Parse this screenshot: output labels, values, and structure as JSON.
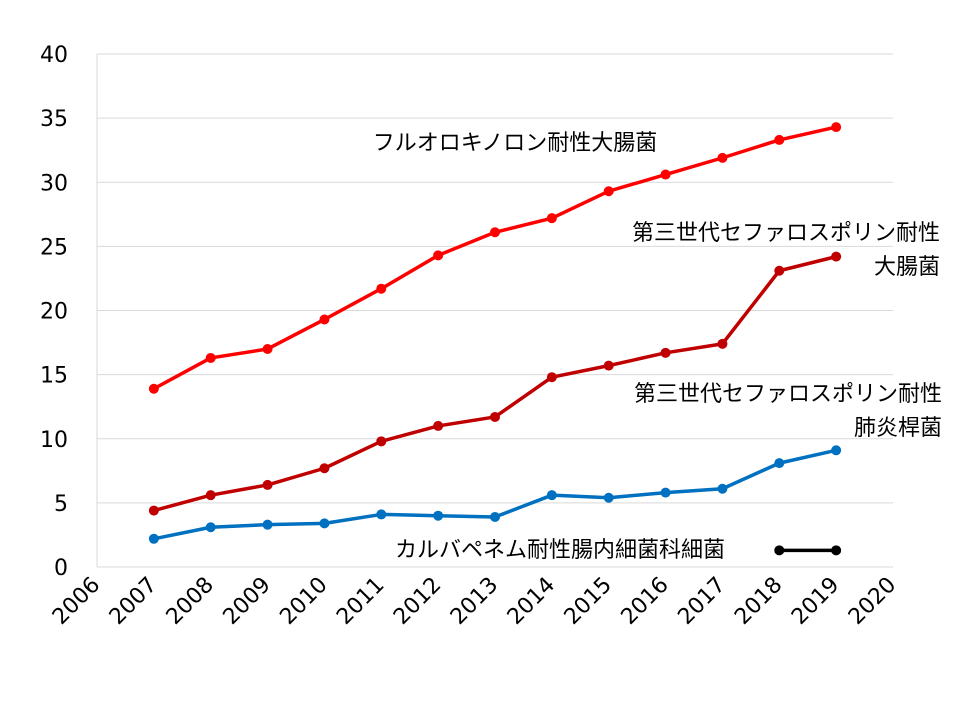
{
  "chart_data": {
    "type": "line",
    "xlim": [
      2006,
      2020
    ],
    "ylim": [
      0,
      40
    ],
    "x_ticks": [
      "2006",
      "2007",
      "2008",
      "2009",
      "2010",
      "2011",
      "2012",
      "2013",
      "2014",
      "2015",
      "2016",
      "2017",
      "2018",
      "2019",
      "2020"
    ],
    "y_ticks": [
      "0",
      "5",
      "10",
      "15",
      "20",
      "25",
      "30",
      "35",
      "40"
    ],
    "grid": "horizontal",
    "series": [
      {
        "name": "フルオロキノロン耐性大腸菌",
        "label_lines": [
          "フルオロキノロン耐性大腸菌"
        ],
        "color": "#ff0000",
        "x": [
          2007,
          2008,
          2009,
          2010,
          2011,
          2012,
          2013,
          2014,
          2015,
          2016,
          2017,
          2018,
          2019
        ],
        "values": [
          13.9,
          16.3,
          17.0,
          19.3,
          21.7,
          24.3,
          26.1,
          27.2,
          29.3,
          30.6,
          31.9,
          33.3,
          34.3
        ]
      },
      {
        "name": "第三世代セファロスポリン耐性大腸菌",
        "label_lines": [
          "第三世代セファロスポリン耐性",
          "大腸菌"
        ],
        "color": "#c00000",
        "x": [
          2007,
          2008,
          2009,
          2010,
          2011,
          2012,
          2013,
          2014,
          2015,
          2016,
          2017,
          2018,
          2019
        ],
        "values": [
          4.4,
          5.6,
          6.4,
          7.7,
          9.8,
          11.0,
          11.7,
          14.8,
          15.7,
          16.7,
          17.4,
          23.1,
          24.2
        ]
      },
      {
        "name": "第三世代セファロスポリン耐性肺炎桿菌",
        "label_lines": [
          "第三世代セファロスポリン耐性",
          "肺炎桿菌"
        ],
        "color": "#0070c0",
        "x": [
          2007,
          2008,
          2009,
          2010,
          2011,
          2012,
          2013,
          2014,
          2015,
          2016,
          2017,
          2018,
          2019
        ],
        "values": [
          2.2,
          3.1,
          3.3,
          3.4,
          4.1,
          4.0,
          3.9,
          5.6,
          5.4,
          5.8,
          6.1,
          8.1,
          9.1
        ]
      },
      {
        "name": "カルバペネム耐性腸内細菌科細菌",
        "label_lines": [
          "カルバペネム耐性腸内細菌科細菌"
        ],
        "color": "#000000",
        "x": [
          2018,
          2019
        ],
        "values": [
          1.3,
          1.3
        ]
      }
    ]
  }
}
